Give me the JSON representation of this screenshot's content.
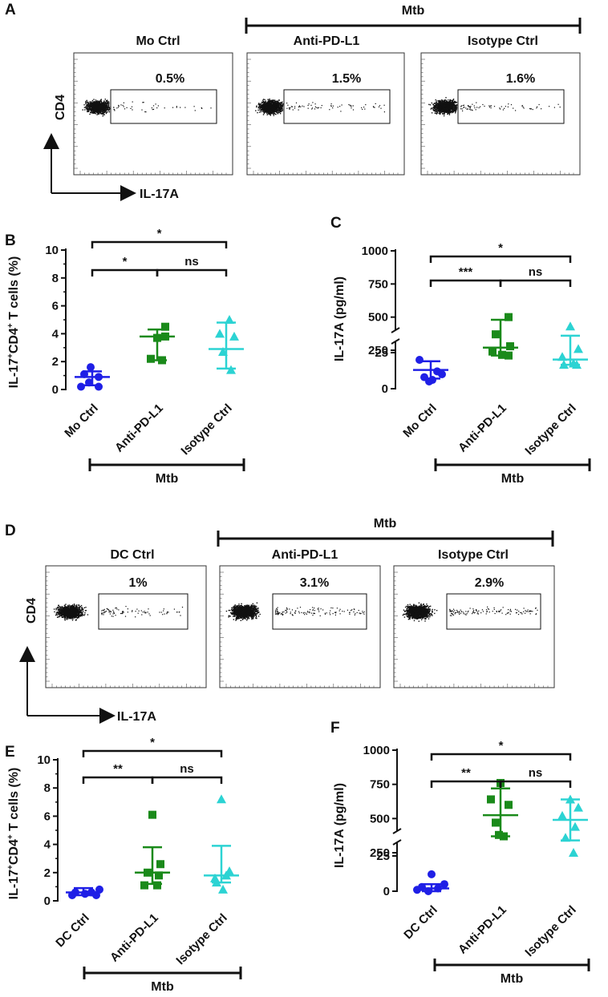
{
  "colors": {
    "mo_dc": "#1f1fe6",
    "anti": "#1a8a1a",
    "iso": "#2cd3d3",
    "axis": "#111111"
  },
  "panels": {
    "A": "A",
    "B": "B",
    "C": "C",
    "D": "D",
    "E": "E",
    "F": "F"
  },
  "flow": [
    {
      "panel": "A",
      "mtb_label": "Mtb",
      "plots": [
        {
          "group": "Mo Ctrl",
          "percent": "0.5%",
          "density": 0.35
        },
        {
          "group": "Anti-PD-L1",
          "percent": "1.5%",
          "density": 0.55
        },
        {
          "group": "Isotype Ctrl",
          "percent": "1.6%",
          "density": 0.55
        }
      ],
      "y_axis": "CD4",
      "x_axis": "IL-17A"
    },
    {
      "panel": "D",
      "mtb_label": "Mtb",
      "plots": [
        {
          "group": "DC Ctrl",
          "percent": "1%",
          "density": 0.7
        },
        {
          "group": "Anti-PD-L1",
          "percent": "3.1%",
          "density": 1.0
        },
        {
          "group": "Isotype Ctrl",
          "percent": "2.9%",
          "density": 1.0
        }
      ],
      "y_axis": "CD4",
      "x_axis": "IL-17A"
    }
  ],
  "chart_data": [
    {
      "panel": "B",
      "type": "scatter",
      "ylabel_main": "IL-17",
      "ylabel_sup1": "+",
      "ylabel_mid": "CD4",
      "ylabel_sup2": "+",
      "ylabel_tail": " T cells (%)",
      "ylim": [
        0,
        10
      ],
      "yticks": [
        "0",
        "2",
        "4",
        "6",
        "8",
        "10"
      ],
      "categories": [
        "Mo Ctrl",
        "Anti-PD-L1",
        "Isotype Ctrl"
      ],
      "group_label": "Mtb",
      "series": [
        {
          "name": "Mo Ctrl",
          "marker": "circle",
          "mean": 0.9,
          "error": [
            0.3,
            1.3
          ],
          "points": [
            1.6,
            1.1,
            0.9,
            0.5,
            0.2,
            0.2
          ]
        },
        {
          "name": "Anti-PD-L1",
          "marker": "square",
          "mean": 3.8,
          "error": [
            2.1,
            4.3
          ],
          "points": [
            4.5,
            3.8,
            3.7,
            2.2,
            2.1
          ]
        },
        {
          "name": "Isotype Ctrl",
          "marker": "triangle",
          "mean": 2.9,
          "error": [
            1.5,
            4.8
          ],
          "points": [
            5.0,
            4.0,
            3.8,
            2.7,
            1.4
          ]
        }
      ],
      "brackets": [
        {
          "from": 0,
          "to": 1,
          "label": "*"
        },
        {
          "from": 1,
          "to": 2,
          "label": "ns"
        },
        {
          "from": 0,
          "to": 2,
          "label": "*"
        }
      ]
    },
    {
      "panel": "C",
      "type": "scatter",
      "ylabel": "IL-17A (pg/ml)",
      "lower_ticks": [
        "0",
        "25"
      ],
      "upper_ticks": [
        "250",
        "500",
        "750",
        "1000"
      ],
      "categories": [
        "Mo Ctrl",
        "Anti-PD-L1",
        "Isotype Ctrl"
      ],
      "group_label": "Mtb",
      "series": [
        {
          "name": "Mo Ctrl",
          "marker": "circle",
          "mean": 13,
          "error": [
            7,
            19
          ],
          "points": [
            26,
            20,
            12,
            10,
            8,
            5
          ]
        },
        {
          "name": "Anti-PD-L1",
          "marker": "square",
          "mean": 270,
          "error": [
            210,
            480
          ],
          "points": [
            500,
            370,
            280,
            240,
            215,
            210
          ]
        },
        {
          "name": "Isotype Ctrl",
          "marker": "triangle",
          "mean": 180,
          "error": [
            140,
            360
          ],
          "points": [
            430,
            260,
            200,
            150,
            140,
            140
          ]
        }
      ],
      "brackets": [
        {
          "from": 0,
          "to": 1,
          "label": "***"
        },
        {
          "from": 1,
          "to": 2,
          "label": "ns"
        },
        {
          "from": 0,
          "to": 2,
          "label": "*"
        }
      ]
    },
    {
      "panel": "E",
      "type": "scatter",
      "ylabel_main": "IL-17",
      "ylabel_sup1": "+",
      "ylabel_mid": "CD4",
      "ylabel_sup2": "+",
      "ylabel_tail": " T cells (%)",
      "ylim": [
        0,
        10
      ],
      "yticks": [
        "0",
        "2",
        "4",
        "6",
        "8",
        "10"
      ],
      "categories": [
        "DC Ctrl",
        "Anti-PD-L1",
        "Isotype Ctrl"
      ],
      "group_label": "Mtb",
      "series": [
        {
          "name": "DC Ctrl",
          "marker": "circle",
          "mean": 0.6,
          "error": [
            0.4,
            0.9
          ],
          "points": [
            0.8,
            0.6,
            0.6,
            0.5,
            0.4,
            0.4
          ]
        },
        {
          "name": "Anti-PD-L1",
          "marker": "square",
          "mean": 2.0,
          "error": [
            1.2,
            3.8
          ],
          "points": [
            6.1,
            2.6,
            2.0,
            1.8,
            1.1,
            1.1
          ]
        },
        {
          "name": "Isotype Ctrl",
          "marker": "triangle",
          "mean": 1.8,
          "error": [
            1.3,
            3.9
          ],
          "points": [
            7.2,
            2.1,
            1.8,
            1.6,
            1.3,
            0.8
          ]
        }
      ],
      "brackets": [
        {
          "from": 0,
          "to": 1,
          "label": "**"
        },
        {
          "from": 1,
          "to": 2,
          "label": "ns"
        },
        {
          "from": 0,
          "to": 2,
          "label": "*"
        }
      ]
    },
    {
      "panel": "F",
      "type": "scatter",
      "ylabel": "IL-17A (pg/ml)",
      "lower_ticks": [
        "0",
        "25"
      ],
      "upper_ticks": [
        "250",
        "500",
        "750",
        "1000"
      ],
      "categories": [
        "DC Ctrl",
        "Anti-PD-L1",
        "Isotype Ctrl"
      ],
      "group_label": "Mtb",
      "series": [
        {
          "name": "DC Ctrl",
          "marker": "circle",
          "mean": 2,
          "error": [
            0,
            5
          ],
          "points": [
            12,
            5,
            3,
            2,
            1,
            0
          ]
        },
        {
          "name": "Anti-PD-L1",
          "marker": "square",
          "mean": 525,
          "error": [
            370,
            720
          ],
          "points": [
            760,
            640,
            600,
            470,
            380,
            370
          ]
        },
        {
          "name": "Isotype Ctrl",
          "marker": "triangle",
          "mean": 490,
          "error": [
            340,
            640
          ],
          "points": [
            640,
            580,
            520,
            440,
            360,
            250
          ]
        }
      ],
      "brackets": [
        {
          "from": 0,
          "to": 1,
          "label": "**"
        },
        {
          "from": 1,
          "to": 2,
          "label": "ns"
        },
        {
          "from": 0,
          "to": 2,
          "label": "*"
        }
      ]
    }
  ]
}
